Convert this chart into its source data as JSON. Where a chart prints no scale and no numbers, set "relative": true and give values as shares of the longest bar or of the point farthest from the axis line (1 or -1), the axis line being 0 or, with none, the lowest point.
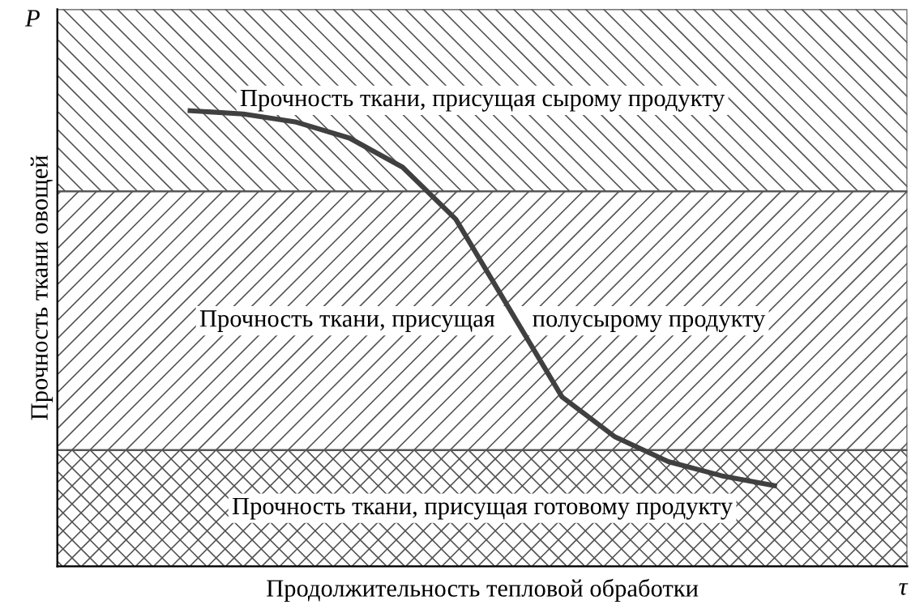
{
  "chart_data": {
    "type": "line",
    "relative": true,
    "xlabel": "Продолжительность тепловой обработки",
    "ylabel": "Прочность ткани овощей",
    "categories": [
      null,
      null,
      null,
      null,
      null,
      null,
      null,
      null,
      null,
      null,
      null,
      null,
      null,
      null,
      null,
      null
    ],
    "series": [
      {
        "color": "#404040",
        "values": [
          null,
          null,
          1.0,
          0.993,
          0.975,
          0.94,
          0.876,
          0.762,
          0.567,
          0.372,
          0.284,
          0.23,
          0.199,
          0.177,
          null,
          null
        ]
      }
    ],
    "bands": [
      {
        "axis": "y",
        "from": 0.823,
        "to": 1.223,
        "label": "Прочность ткани, присущая сырому продукту",
        "color": "#555555"
      },
      {
        "axis": "y",
        "from": 0.255,
        "to": 0.823,
        "label": "Прочность ткани, присущая      полусырому продукту",
        "color": "#555555"
      },
      {
        "axis": "y",
        "from": 0,
        "to": 0.255,
        "label": "Прочность ткани, присущая готовому продукту",
        "color": "#555555"
      }
    ],
    "annotations": [
      "P",
      "τ"
    ],
    "grid": false,
    "legend": false,
    "marker": "none",
    "line_style": "solid"
  }
}
